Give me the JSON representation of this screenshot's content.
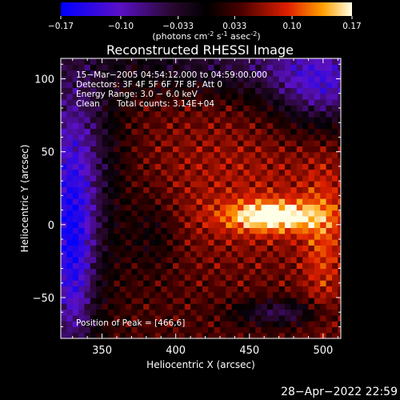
{
  "colorbar": {
    "ticks": [
      "-0.17",
      "-0.10",
      "-0.033",
      "0.033",
      "0.10",
      "0.17"
    ],
    "tick_values": [
      -0.17,
      -0.1,
      -0.033,
      0.033,
      0.1,
      0.17
    ],
    "range": [
      -0.17,
      0.17
    ],
    "units_prefix": "(photons cm",
    "units_exp1": "-2",
    "units_mid": " s",
    "units_exp2": "-1",
    "units_mid2": " asec",
    "units_exp3": "-2",
    "units_suffix": ")"
  },
  "chart_data": {
    "type": "heatmap",
    "title": "Reconstructed RHESSI Image",
    "xlabel": "Heliocentric X (arcsec)",
    "ylabel": "Heliocentric Y (arcsec)",
    "xlim": [
      322,
      512
    ],
    "ylim": [
      -78,
      114
    ],
    "xticks": [
      350,
      400,
      450,
      500
    ],
    "yticks": [
      -50,
      0,
      50,
      100
    ],
    "xtick_labels": [
      "350",
      "400",
      "450",
      "500"
    ],
    "ytick_labels": [
      "−50",
      "0",
      "50",
      "100"
    ],
    "colormap": "rhessi-diverging",
    "vmin": -0.17,
    "vmax": 0.17,
    "peak": [
      466,
      6
    ],
    "peak_value": 0.17,
    "annotations": {
      "time_range": "15−Mar−2005 04:54:12.000 to 04:59:00.000",
      "detectors": "Detectors: 3F 4F 5F 6F 7F 8F, Att 0",
      "energy": "Energy Range: 3.0 − 6.0 keV",
      "method": "Clean",
      "counts": "Total counts: 3.14E+04",
      "peak_label": "Position of Peak = [466,6]"
    }
  },
  "footer": {
    "timestamp": "28−Apr−2022 22:59"
  }
}
